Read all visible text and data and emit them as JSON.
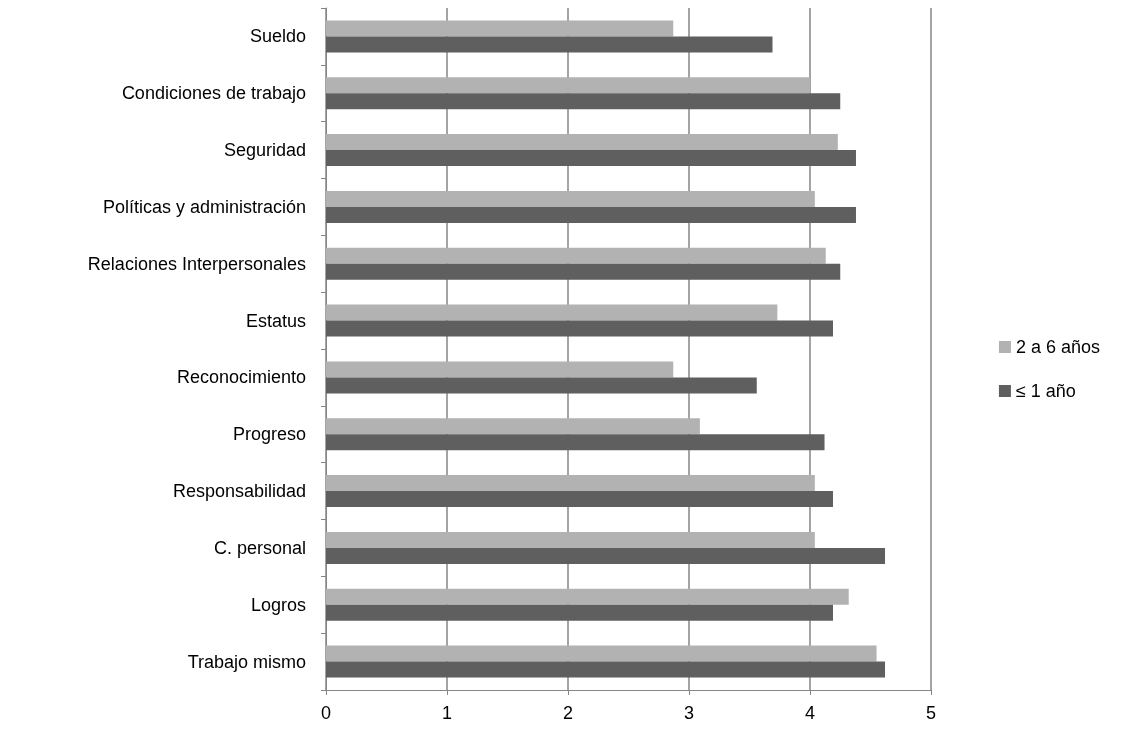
{
  "chart_data": {
    "type": "bar",
    "orientation": "horizontal",
    "categories": [
      "Sueldo",
      "Condiciones de trabajo",
      "Seguridad",
      "Políticas y administración",
      "Relaciones Interpersonales",
      "Estatus",
      "Reconocimiento",
      "Progreso",
      "Responsabilidad",
      "C. personal",
      "Logros",
      "Trabajo mismo"
    ],
    "series": [
      {
        "name": "2 a 6 años",
        "color": "#b2b2b2",
        "values": [
          2.87,
          4.0,
          4.23,
          4.04,
          4.13,
          3.73,
          2.87,
          3.09,
          4.04,
          4.04,
          4.32,
          4.55
        ]
      },
      {
        "name": "≤ 1 año",
        "color": "#5f5f5f",
        "values": [
          3.69,
          4.25,
          4.38,
          4.38,
          4.25,
          4.19,
          3.56,
          4.12,
          4.19,
          4.62,
          4.19,
          4.62
        ]
      }
    ],
    "xlim": [
      0,
      5
    ],
    "xticks": [
      0,
      1,
      2,
      3,
      4,
      5
    ],
    "grid": "x",
    "legend": "right"
  }
}
